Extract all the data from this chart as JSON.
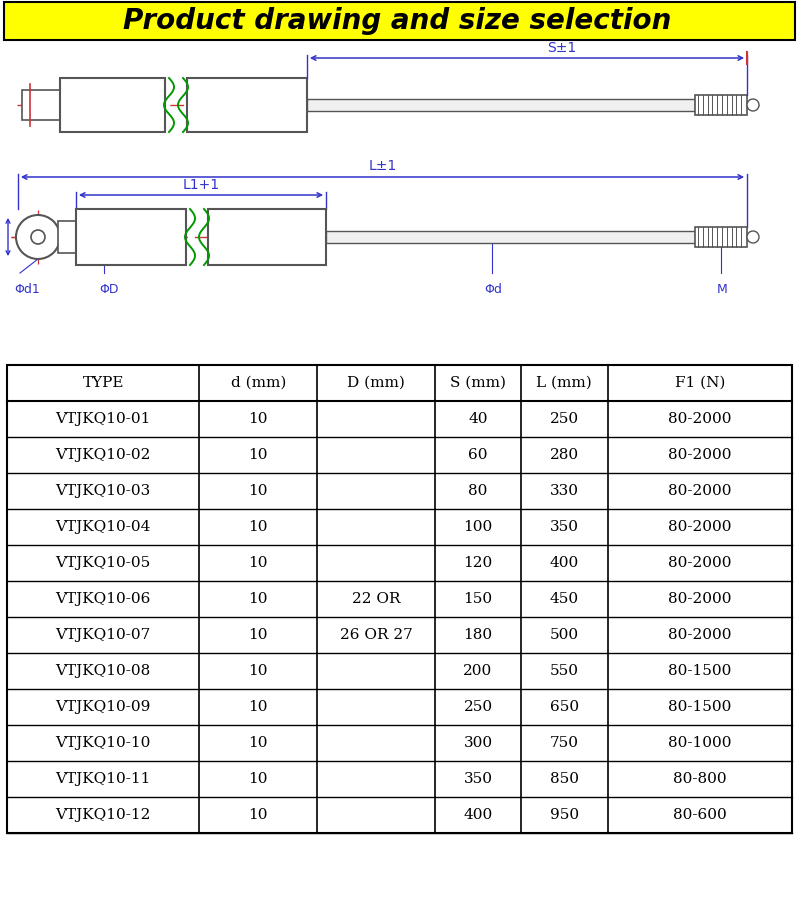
{
  "title": "Product drawing and size selection",
  "title_bg": "#FFFF00",
  "title_color": "#000000",
  "title_fontsize": 20,
  "table_headers": [
    "TYPE",
    "d (mm)",
    "D (mm)",
    "S (mm)",
    "L (mm)",
    "F1 (N)"
  ],
  "table_data": [
    [
      "VTJKQ10-01",
      "10",
      "",
      "40",
      "250",
      "80-2000"
    ],
    [
      "VTJKQ10-02",
      "10",
      "",
      "60",
      "280",
      "80-2000"
    ],
    [
      "VTJKQ10-03",
      "10",
      "",
      "80",
      "330",
      "80-2000"
    ],
    [
      "VTJKQ10-04",
      "10",
      "",
      "100",
      "350",
      "80-2000"
    ],
    [
      "VTJKQ10-05",
      "10",
      "",
      "120",
      "400",
      "80-2000"
    ],
    [
      "VTJKQ10-06",
      "10",
      "22 OR",
      "150",
      "450",
      "80-2000"
    ],
    [
      "VTJKQ10-07",
      "10",
      "26 OR 27",
      "180",
      "500",
      "80-2000"
    ],
    [
      "VTJKQ10-08",
      "10",
      "",
      "200",
      "550",
      "80-1500"
    ],
    [
      "VTJKQ10-09",
      "10",
      "",
      "250",
      "650",
      "80-1500"
    ],
    [
      "VTJKQ10-10",
      "10",
      "",
      "300",
      "750",
      "80-1000"
    ],
    [
      "VTJKQ10-11",
      "10",
      "",
      "350",
      "850",
      "80-800"
    ],
    [
      "VTJKQ10-12",
      "10",
      "",
      "400",
      "950",
      "80-600"
    ]
  ],
  "bg_color": "#FFFFFF",
  "blue_color": "#3333CC",
  "red_color": "#CC3333",
  "green_color": "#009900",
  "dark_gray": "#555555",
  "black": "#000000"
}
